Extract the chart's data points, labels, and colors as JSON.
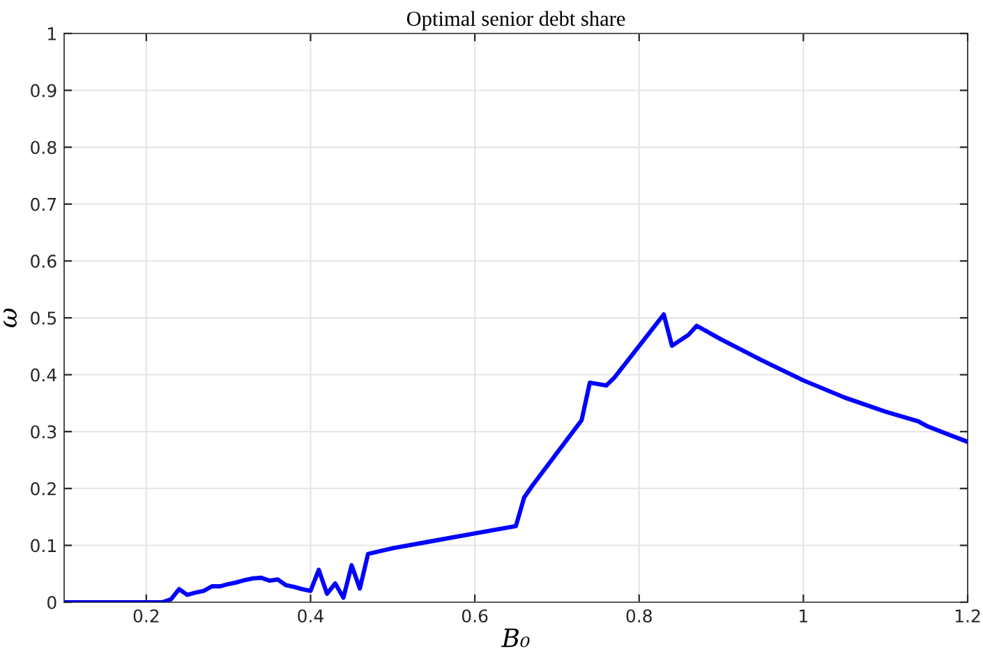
{
  "chart_data": {
    "type": "line",
    "title": "Optimal senior debt share",
    "xlabel": "B₀",
    "ylabel": "ω",
    "x": [
      0.1,
      0.22,
      0.23,
      0.24,
      0.25,
      0.26,
      0.27,
      0.28,
      0.29,
      0.3,
      0.31,
      0.32,
      0.33,
      0.34,
      0.35,
      0.36,
      0.37,
      0.38,
      0.39,
      0.4,
      0.41,
      0.42,
      0.43,
      0.44,
      0.45,
      0.46,
      0.47,
      0.5,
      0.55,
      0.6,
      0.65,
      0.66,
      0.67,
      0.73,
      0.74,
      0.76,
      0.77,
      0.83,
      0.84,
      0.86,
      0.87,
      0.9,
      0.95,
      1.0,
      1.05,
      1.1,
      1.14,
      1.15,
      1.18,
      1.2
    ],
    "series": [
      {
        "color": "#0000ff",
        "values": [
          0,
          0,
          0.005,
          0.023,
          0.013,
          0.017,
          0.02,
          0.028,
          0.028,
          0.032,
          0.035,
          0.039,
          0.042,
          0.043,
          0.038,
          0.04,
          0.03,
          0.027,
          0.023,
          0.02,
          0.057,
          0.015,
          0.033,
          0.008,
          0.065,
          0.024,
          0.085,
          0.095,
          0.108,
          0.121,
          0.134,
          0.184,
          0.205,
          0.32,
          0.386,
          0.381,
          0.395,
          0.506,
          0.451,
          0.47,
          0.486,
          0.462,
          0.425,
          0.39,
          0.36,
          0.335,
          0.318,
          0.31,
          0.293,
          0.282
        ]
      }
    ],
    "xlim": [
      0.1,
      1.2
    ],
    "ylim": [
      0,
      1
    ],
    "xticks": [
      0.2,
      0.4,
      0.6,
      0.8,
      {
        "value": 1,
        "label": "1"
      },
      1.2
    ],
    "yticks": [
      {
        "value": 0,
        "label": "0"
      },
      0.1,
      0.2,
      0.3,
      0.4,
      0.5,
      0.6,
      0.7,
      0.8,
      0.9,
      {
        "value": 1,
        "label": "1"
      }
    ],
    "grid": true,
    "line_style": "solid",
    "marker": "none"
  }
}
